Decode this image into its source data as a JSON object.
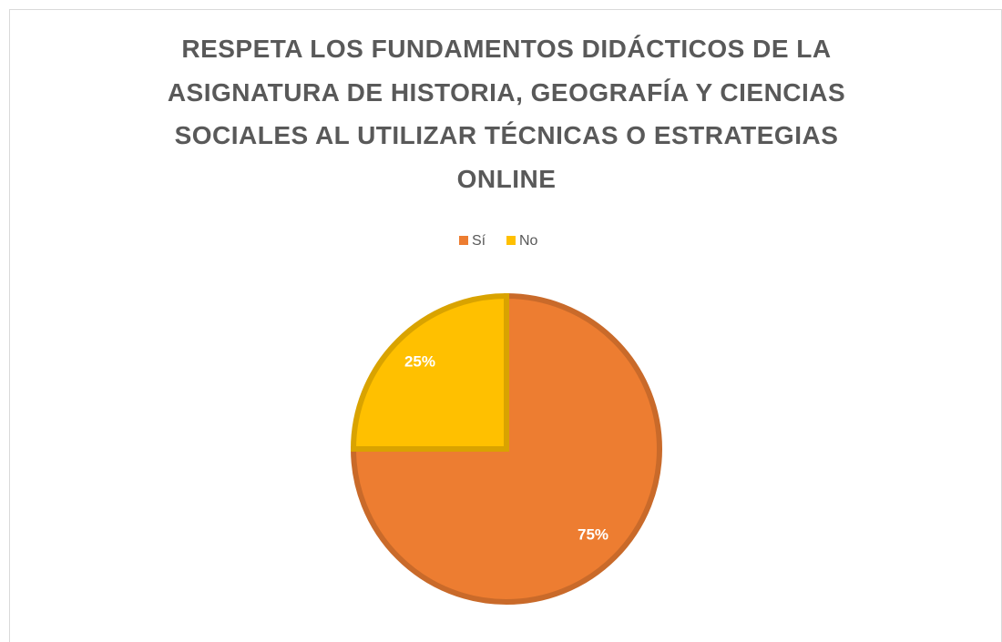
{
  "chart_data": {
    "type": "pie",
    "title": "RESPETA LOS FUNDAMENTOS DIDÁCTICOS DE LA ASIGNATURA DE HISTORIA, GEOGRAFÍA Y CIENCIAS SOCIALES AL UTILIZAR TÉCNICAS O ESTRATEGIAS ONLINE",
    "categories": [
      "Sí",
      "No"
    ],
    "values": [
      75,
      25
    ],
    "value_labels": [
      "75%",
      "25%"
    ],
    "colors": [
      "#ED7D31",
      "#FFC000"
    ],
    "legend": "top"
  }
}
